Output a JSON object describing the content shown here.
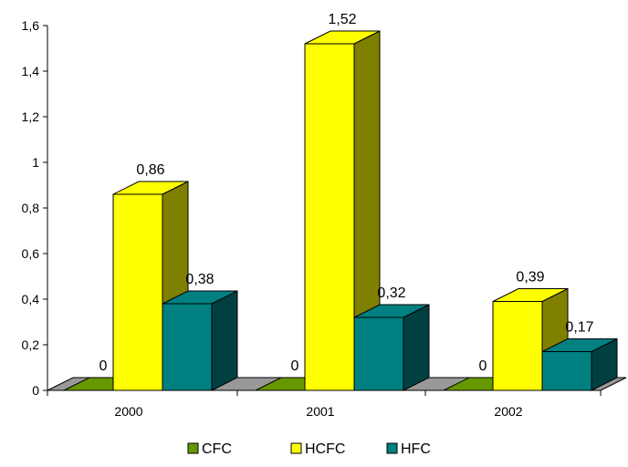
{
  "chart_data": {
    "type": "bar",
    "style": "3d-clustered",
    "categories": [
      "2000",
      "2001",
      "2002"
    ],
    "series": [
      {
        "name": "CFC",
        "values": [
          0,
          0,
          0
        ],
        "labels": [
          "0",
          "0",
          "0"
        ],
        "color": "#669900"
      },
      {
        "name": "HCFC",
        "values": [
          0.86,
          1.52,
          0.39
        ],
        "labels": [
          "0,86",
          "1,52",
          "0,39"
        ],
        "color": "#ffff00"
      },
      {
        "name": "HFC",
        "values": [
          0.38,
          0.32,
          0.17
        ],
        "labels": [
          "0,38",
          "0,32",
          "0,17"
        ],
        "color": "#008080"
      }
    ],
    "yticks": [
      {
        "value": 0,
        "label": "0"
      },
      {
        "value": 0.2,
        "label": "0,2"
      },
      {
        "value": 0.4,
        "label": "0,4"
      },
      {
        "value": 0.6,
        "label": "0,6"
      },
      {
        "value": 0.8,
        "label": "0,8"
      },
      {
        "value": 1.0,
        "label": "1"
      },
      {
        "value": 1.2,
        "label": "1,2"
      },
      {
        "value": 1.4,
        "label": "1,4"
      },
      {
        "value": 1.6,
        "label": "1,6"
      }
    ],
    "ylim": [
      0,
      1.6
    ],
    "grid": false,
    "legend": "bottom",
    "title": "",
    "xlabel": "",
    "ylabel": ""
  }
}
